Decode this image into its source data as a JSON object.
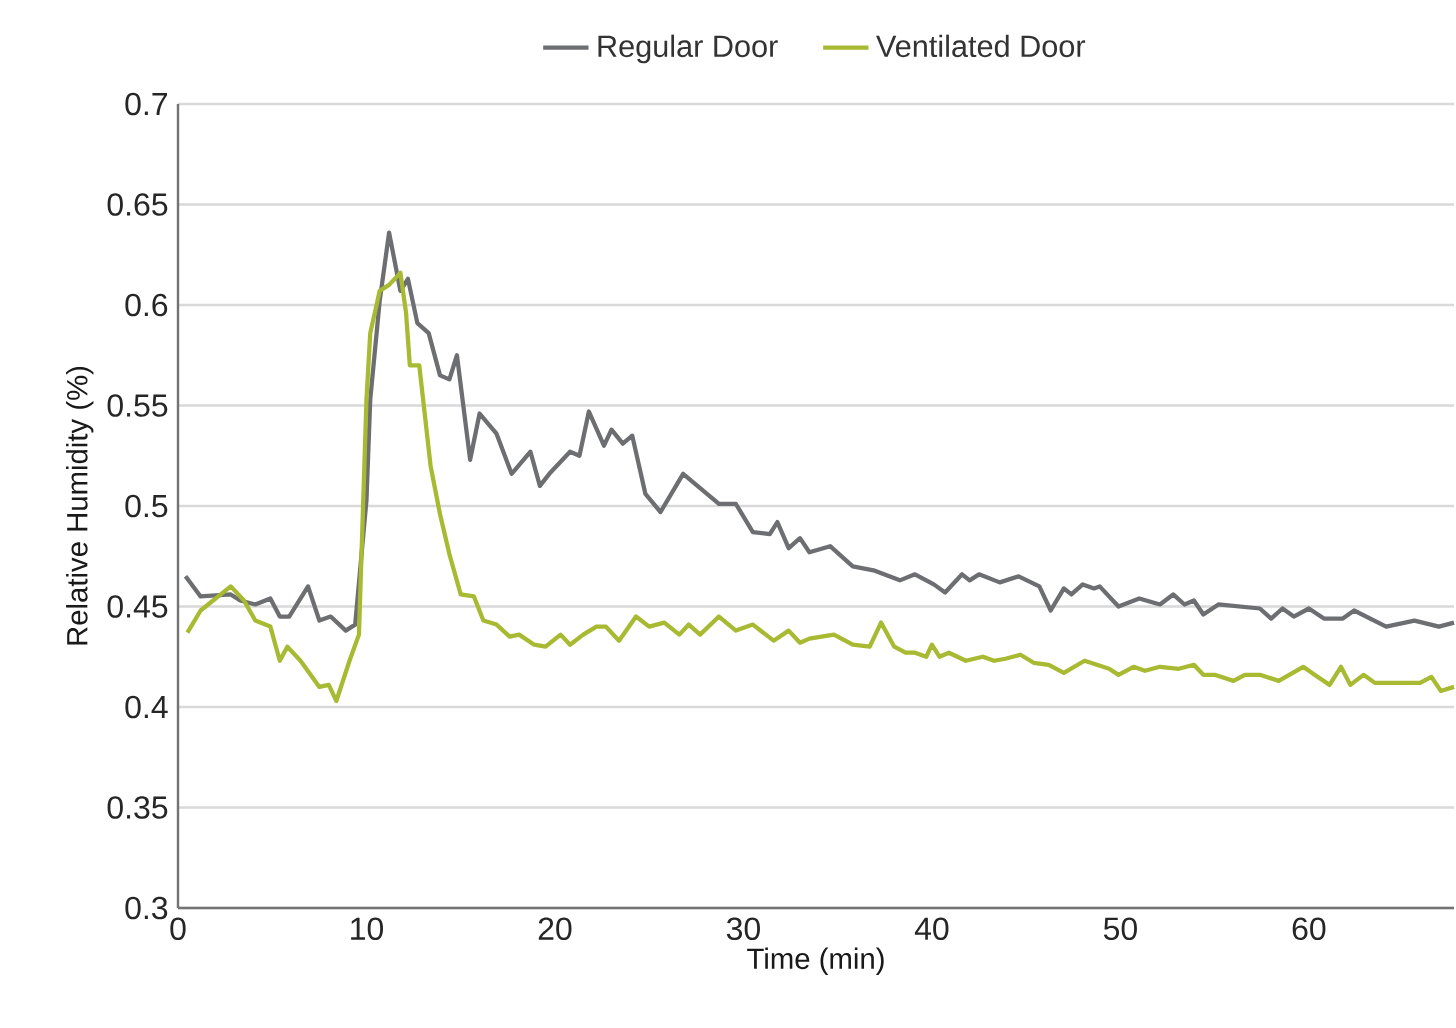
{
  "chart_data": {
    "type": "line",
    "xlabel": "Time (min)",
    "ylabel": "Relative Humidity (%)",
    "xlim": [
      0,
      67.7
    ],
    "xticks": [
      0,
      10,
      20,
      30,
      40,
      50,
      60
    ],
    "ylim": [
      0.3,
      0.7
    ],
    "yticks": [
      0.3,
      0.35,
      0.4,
      0.45,
      0.5,
      0.55,
      0.6,
      0.65,
      0.7
    ],
    "grid": "y",
    "legend": "top",
    "marker": "none",
    "line_style": "solid",
    "series": [
      {
        "name": "Regular Door",
        "color": "#6d6e71",
        "x": [
          0.4,
          1.2,
          2.8,
          3.3,
          4.1,
          4.9,
          5.4,
          5.9,
          6.9,
          7.5,
          8.1,
          8.9,
          9.4,
          10.0,
          10.2,
          10.7,
          11.2,
          11.8,
          12.2,
          12.7,
          13.3,
          13.9,
          14.4,
          14.8,
          15.5,
          16.0,
          16.9,
          17.7,
          18.7,
          19.2,
          19.7,
          20.8,
          21.3,
          21.8,
          22.6,
          23.0,
          23.6,
          24.1,
          24.8,
          25.6,
          26.8,
          28.7,
          29.6,
          30.5,
          31.4,
          31.8,
          32.4,
          33.0,
          33.5,
          34.6,
          35.8,
          36.9,
          38.3,
          39.1,
          40.1,
          40.7,
          41.6,
          42.0,
          42.5,
          43.6,
          44.6,
          45.7,
          46.3,
          47.0,
          47.4,
          48.0,
          48.6,
          48.9,
          49.9,
          51.0,
          52.1,
          52.8,
          53.4,
          53.9,
          54.4,
          55.2,
          57.4,
          58.0,
          58.6,
          59.2,
          60.0,
          60.8,
          61.8,
          62.4,
          64.1,
          65.6,
          66.9,
          67.7
        ],
        "values": [
          0.465,
          0.455,
          0.456,
          0.453,
          0.451,
          0.454,
          0.445,
          0.445,
          0.46,
          0.443,
          0.445,
          0.438,
          0.441,
          0.503,
          0.553,
          0.602,
          0.636,
          0.607,
          0.613,
          0.591,
          0.586,
          0.565,
          0.563,
          0.575,
          0.523,
          0.546,
          0.536,
          0.516,
          0.527,
          0.51,
          0.516,
          0.527,
          0.525,
          0.547,
          0.53,
          0.538,
          0.531,
          0.535,
          0.506,
          0.497,
          0.516,
          0.501,
          0.501,
          0.487,
          0.486,
          0.492,
          0.479,
          0.484,
          0.477,
          0.48,
          0.47,
          0.468,
          0.463,
          0.466,
          0.461,
          0.457,
          0.466,
          0.463,
          0.466,
          0.462,
          0.465,
          0.46,
          0.448,
          0.459,
          0.456,
          0.461,
          0.459,
          0.46,
          0.45,
          0.454,
          0.451,
          0.456,
          0.451,
          0.453,
          0.446,
          0.451,
          0.449,
          0.444,
          0.449,
          0.445,
          0.449,
          0.444,
          0.444,
          0.448,
          0.44,
          0.443,
          0.44,
          0.442
        ]
      },
      {
        "name": "Ventilated Door",
        "color": "#a8b932",
        "x": [
          0.5,
          1.2,
          2.8,
          3.5,
          4.1,
          4.9,
          5.4,
          5.8,
          6.5,
          7.5,
          8.0,
          8.4,
          9.1,
          9.6,
          10.0,
          10.2,
          10.7,
          11.2,
          11.8,
          12.1,
          12.3,
          12.8,
          13.4,
          13.9,
          14.4,
          15.0,
          15.7,
          16.2,
          16.9,
          17.6,
          18.1,
          18.9,
          19.5,
          20.3,
          20.8,
          21.5,
          22.2,
          22.7,
          23.4,
          24.3,
          25.0,
          25.8,
          26.6,
          27.1,
          27.7,
          28.7,
          29.6,
          30.5,
          31.6,
          32.4,
          33.0,
          33.5,
          34.8,
          35.8,
          36.7,
          37.3,
          38.0,
          38.6,
          39.1,
          39.7,
          40.0,
          40.4,
          40.9,
          41.8,
          42.7,
          43.3,
          43.9,
          44.7,
          45.4,
          46.2,
          47.0,
          48.1,
          49.4,
          49.9,
          50.7,
          51.3,
          52.1,
          53.1,
          53.9,
          54.4,
          55.0,
          56.0,
          56.6,
          57.4,
          58.4,
          59.7,
          60.3,
          61.1,
          61.7,
          62.2,
          62.9,
          63.5,
          64.5,
          65.9,
          66.5,
          67.0,
          67.7
        ],
        "values": [
          0.437,
          0.448,
          0.46,
          0.453,
          0.443,
          0.44,
          0.423,
          0.43,
          0.423,
          0.41,
          0.411,
          0.403,
          0.423,
          0.436,
          0.553,
          0.586,
          0.607,
          0.61,
          0.616,
          0.596,
          0.57,
          0.57,
          0.52,
          0.496,
          0.476,
          0.456,
          0.455,
          0.443,
          0.441,
          0.435,
          0.436,
          0.431,
          0.43,
          0.436,
          0.431,
          0.436,
          0.44,
          0.44,
          0.433,
          0.445,
          0.44,
          0.442,
          0.436,
          0.441,
          0.436,
          0.445,
          0.438,
          0.441,
          0.433,
          0.438,
          0.432,
          0.434,
          0.436,
          0.431,
          0.43,
          0.442,
          0.43,
          0.427,
          0.427,
          0.425,
          0.431,
          0.425,
          0.427,
          0.423,
          0.425,
          0.423,
          0.424,
          0.426,
          0.422,
          0.421,
          0.417,
          0.423,
          0.419,
          0.416,
          0.42,
          0.418,
          0.42,
          0.419,
          0.421,
          0.416,
          0.416,
          0.413,
          0.416,
          0.416,
          0.413,
          0.42,
          0.416,
          0.411,
          0.42,
          0.411,
          0.416,
          0.412,
          0.412,
          0.412,
          0.415,
          0.408,
          0.41
        ]
      }
    ]
  }
}
